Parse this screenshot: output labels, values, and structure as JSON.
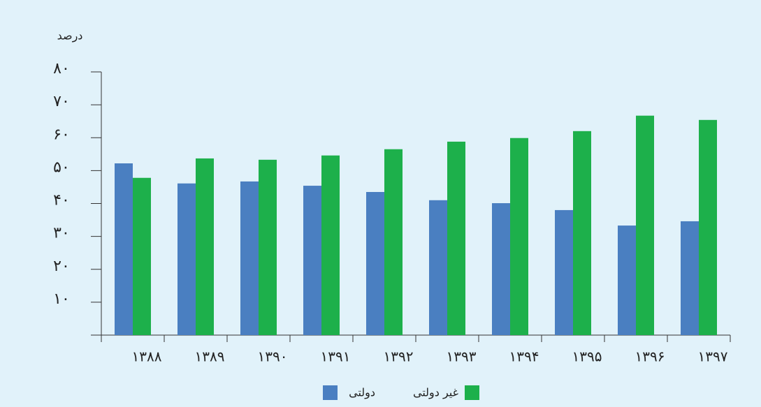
{
  "chart_data": {
    "type": "bar",
    "y_label": "درصد",
    "categories": [
      "۱۳۸۸",
      "۱۳۸۹",
      "۱۳۹۰",
      "۱۳۹۱",
      "۱۳۹۲",
      "۱۳۹۳",
      "۱۳۹۴",
      "۱۳۹۵",
      "۱۳۹۶",
      "۱۳۹۷"
    ],
    "series": [
      {
        "name": "دولتی",
        "color": "#4a7fc1",
        "values": [
          52.2,
          46.1,
          46.7,
          45.4,
          43.5,
          41.0,
          40.1,
          38.0,
          33.3,
          34.6
        ]
      },
      {
        "name": "غیر دولتی",
        "color": "#1db04b",
        "values": [
          47.8,
          53.7,
          53.3,
          54.6,
          56.5,
          58.8,
          59.9,
          62.0,
          66.7,
          65.4
        ]
      }
    ],
    "ylim": [
      0,
      80
    ],
    "yticks": [
      {
        "value": 10,
        "label": "۱۰"
      },
      {
        "value": 20,
        "label": "۲۰"
      },
      {
        "value": 30,
        "label": "۳۰"
      },
      {
        "value": 40,
        "label": "۴۰"
      },
      {
        "value": 50,
        "label": "۵۰"
      },
      {
        "value": 60,
        "label": "۶۰"
      },
      {
        "value": 70,
        "label": "۷۰"
      },
      {
        "value": 80,
        "label": "۸۰"
      }
    ],
    "grid": false
  }
}
